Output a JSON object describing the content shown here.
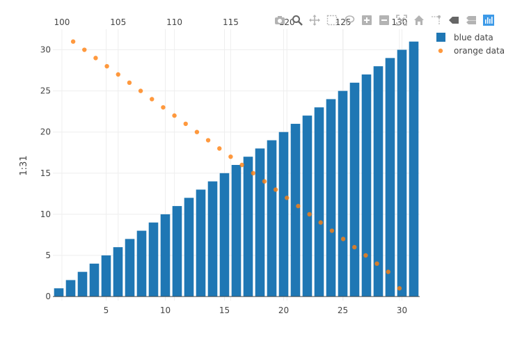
{
  "colors": {
    "blue": "#1f77b4",
    "orange": "#ff7f0e",
    "grid": "#eeeeee",
    "modebar_icon": "#b3b3b3",
    "modebar_logo": "#3d9ae8"
  },
  "modebar": {
    "buttons": [
      {
        "name": "camera-icon"
      },
      {
        "name": "zoom-icon"
      },
      {
        "name": "pan-icon"
      },
      {
        "name": "box-select-icon"
      },
      {
        "name": "lasso-select-icon"
      },
      {
        "name": "zoom-in-icon"
      },
      {
        "name": "zoom-out-icon"
      },
      {
        "name": "autoscale-icon"
      },
      {
        "name": "reset-axes-icon"
      },
      {
        "name": "spike-lines-icon"
      },
      {
        "name": "hover-closest-icon"
      },
      {
        "name": "hover-compare-icon"
      },
      {
        "name": "plotly-logo-icon"
      }
    ]
  },
  "chart_data": {
    "type": "bar",
    "title": "",
    "ylabel": "1:31",
    "xlabel": "",
    "grid": true,
    "legend_position": "top-right",
    "xaxis_bottom": {
      "range": [
        0.5,
        31.5
      ],
      "tickvals": [
        5,
        10,
        15,
        20,
        25,
        30
      ],
      "ticktext": [
        "5",
        "10",
        "15",
        "20",
        "25",
        "30"
      ]
    },
    "xaxis_top": {
      "range": [
        99.2,
        131.8
      ],
      "tickvals": [
        100,
        105,
        110,
        115,
        120,
        125,
        130
      ],
      "ticktext": [
        "100",
        "105",
        "110",
        "115",
        "120",
        "125",
        "130"
      ]
    },
    "yaxis": {
      "range": [
        -0.5,
        32.5
      ],
      "tickvals": [
        0,
        5,
        10,
        15,
        20,
        25,
        30
      ],
      "ticktext": [
        "0",
        "5",
        "10",
        "15",
        "20",
        "25",
        "30"
      ]
    },
    "series": [
      {
        "name": "blue data",
        "kind": "bar",
        "x": [
          1,
          2,
          3,
          4,
          5,
          6,
          7,
          8,
          9,
          10,
          11,
          12,
          13,
          14,
          15,
          16,
          17,
          18,
          19,
          20,
          21,
          22,
          23,
          24,
          25,
          26,
          27,
          28,
          29,
          30,
          31
        ],
        "y": [
          1,
          2,
          3,
          4,
          5,
          6,
          7,
          8,
          9,
          10,
          11,
          12,
          13,
          14,
          15,
          16,
          17,
          18,
          19,
          20,
          21,
          22,
          23,
          24,
          25,
          26,
          27,
          28,
          29,
          30,
          31
        ]
      },
      {
        "name": "orange data",
        "kind": "scatter",
        "x": [
          101,
          102,
          103,
          104,
          105,
          106,
          107,
          108,
          109,
          110,
          111,
          112,
          113,
          114,
          115,
          116,
          117,
          118,
          119,
          120,
          121,
          122,
          123,
          124,
          125,
          126,
          127,
          128,
          129,
          130
        ],
        "y": [
          31,
          30,
          29,
          28,
          27,
          26,
          25,
          24,
          23,
          22,
          21,
          20,
          19,
          18,
          17,
          16,
          15,
          14,
          13,
          12,
          11,
          10,
          9,
          8,
          7,
          6,
          5,
          4,
          3,
          1
        ]
      }
    ]
  }
}
